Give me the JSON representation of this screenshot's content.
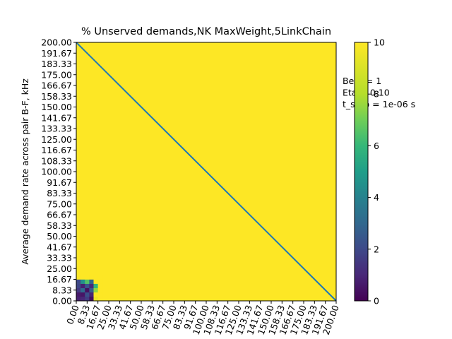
{
  "chart_data": {
    "type": "heatmap",
    "title": "% Unserved demands,NK MaxWeight,5LinkChain",
    "xlabel": "",
    "ylabel": "Average demand rate across pair B-F, kHz",
    "x_ticks": [
      "0.00",
      "8.33",
      "16.67",
      "25.00",
      "33.33",
      "41.67",
      "50.00",
      "58.33",
      "66.67",
      "75.00",
      "83.33",
      "91.67",
      "100.00",
      "108.33",
      "116.67",
      "125.00",
      "133.33",
      "141.67",
      "150.00",
      "158.33",
      "166.67",
      "175.00",
      "183.33",
      "191.67",
      "200.00"
    ],
    "y_ticks": [
      "0.00",
      "8.33",
      "16.67",
      "25.00",
      "33.33",
      "41.67",
      "50.00",
      "58.33",
      "66.67",
      "75.00",
      "83.33",
      "91.67",
      "100.00",
      "108.33",
      "116.67",
      "125.00",
      "133.33",
      "141.67",
      "150.00",
      "158.33",
      "166.67",
      "175.00",
      "183.33",
      "191.67",
      "200.00"
    ],
    "xlim": [
      0,
      200
    ],
    "ylim": [
      0,
      200
    ],
    "colorbar": {
      "min": 0,
      "max": 10,
      "ticks": [
        "0",
        "2",
        "4",
        "6",
        "8",
        "10"
      ],
      "colormap": "viridis"
    },
    "background_value": 10,
    "cell_size": 3.33,
    "low_region_cells": [
      [
        0.8,
        1.0,
        1.6,
        0.3,
        9.5,
        10
      ],
      [
        0.6,
        0.5,
        2.2,
        0.9,
        10,
        10
      ],
      [
        1.5,
        3.0,
        0.4,
        2.5,
        7.5,
        10
      ],
      [
        1.9,
        0.8,
        2.4,
        1.0,
        6.0,
        10
      ],
      [
        2.0,
        4.5,
        6.5,
        2.8,
        10,
        10
      ],
      [
        10,
        10,
        10,
        10,
        10,
        10
      ]
    ],
    "diagonal_line": {
      "x": [
        0,
        200
      ],
      "y": [
        200,
        0
      ],
      "color": "#1f77b4"
    },
    "annotations": [
      "Beta = 1",
      "Eta = 0.10",
      "t_step = 1e-06 s"
    ]
  }
}
